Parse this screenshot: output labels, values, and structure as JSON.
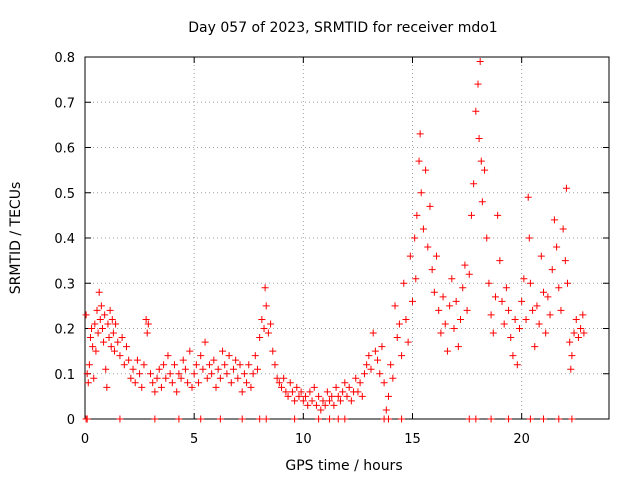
{
  "chart_data": {
    "type": "scatter",
    "title": "Day 057 of 2023, SRMTID for receiver mdo1",
    "xlabel": "GPS time / hours",
    "ylabel": "SRMTID / TECUs",
    "xlim": [
      0,
      24
    ],
    "ylim": [
      0,
      0.8
    ],
    "xticks": [
      0,
      5,
      10,
      15,
      20
    ],
    "yticks": [
      0,
      0.1,
      0.2,
      0.3,
      0.4,
      0.5,
      0.6,
      0.7,
      0.8
    ],
    "xtick_labels": [
      "0",
      "5",
      "10",
      "15",
      "20"
    ],
    "ytick_labels": [
      "0",
      "0.1",
      "0.2",
      "0.3",
      "0.4",
      "0.5",
      "0.6",
      "0.7",
      "0.8"
    ],
    "grid": true,
    "marker": "+",
    "color": "#ff0000",
    "series": [
      {
        "name": "SRMTID",
        "points": [
          [
            0.05,
            0.23
          ],
          [
            0.1,
            0.1
          ],
          [
            0.15,
            0.08
          ],
          [
            0.2,
            0.12
          ],
          [
            0.25,
            0.18
          ],
          [
            0.3,
            0.2
          ],
          [
            0.35,
            0.16
          ],
          [
            0.4,
            0.09
          ],
          [
            0.45,
            0.21
          ],
          [
            0.5,
            0.15
          ],
          [
            0.55,
            0.24
          ],
          [
            0.6,
            0.19
          ],
          [
            0.65,
            0.28
          ],
          [
            0.7,
            0.22
          ],
          [
            0.75,
            0.25
          ],
          [
            0.8,
            0.2
          ],
          [
            0.85,
            0.17
          ],
          [
            0.9,
            0.23
          ],
          [
            0.95,
            0.11
          ],
          [
            1.0,
            0.07
          ],
          [
            1.05,
            0.21
          ],
          [
            1.1,
            0.18
          ],
          [
            1.15,
            0.24
          ],
          [
            1.2,
            0.16
          ],
          [
            1.25,
            0.22
          ],
          [
            1.3,
            0.19
          ],
          [
            1.35,
            0.15
          ],
          [
            1.4,
            0.21
          ],
          [
            1.5,
            0.17
          ],
          [
            1.6,
            0.14
          ],
          [
            1.7,
            0.18
          ],
          [
            1.8,
            0.12
          ],
          [
            1.9,
            0.16
          ],
          [
            2.0,
            0.13
          ],
          [
            2.1,
            0.09
          ],
          [
            2.2,
            0.11
          ],
          [
            2.3,
            0.08
          ],
          [
            2.4,
            0.13
          ],
          [
            2.5,
            0.1
          ],
          [
            2.6,
            0.07
          ],
          [
            2.7,
            0.12
          ],
          [
            2.8,
            0.22
          ],
          [
            2.85,
            0.19
          ],
          [
            2.9,
            0.21
          ],
          [
            3.0,
            0.1
          ],
          [
            3.1,
            0.08
          ],
          [
            3.2,
            0.06
          ],
          [
            3.3,
            0.09
          ],
          [
            3.4,
            0.11
          ],
          [
            3.5,
            0.07
          ],
          [
            3.6,
            0.12
          ],
          [
            3.7,
            0.09
          ],
          [
            3.8,
            0.14
          ],
          [
            3.9,
            0.1
          ],
          [
            4.0,
            0.08
          ],
          [
            4.1,
            0.12
          ],
          [
            4.2,
            0.06
          ],
          [
            4.3,
            0.1
          ],
          [
            4.4,
            0.09
          ],
          [
            4.5,
            0.13
          ],
          [
            4.6,
            0.11
          ],
          [
            4.7,
            0.08
          ],
          [
            4.8,
            0.15
          ],
          [
            4.9,
            0.07
          ],
          [
            5.0,
            0.1
          ],
          [
            5.1,
            0.12
          ],
          [
            5.2,
            0.08
          ],
          [
            5.3,
            0.14
          ],
          [
            5.4,
            0.11
          ],
          [
            5.5,
            0.17
          ],
          [
            5.6,
            0.09
          ],
          [
            5.7,
            0.12
          ],
          [
            5.8,
            0.1
          ],
          [
            5.9,
            0.13
          ],
          [
            6.0,
            0.07
          ],
          [
            6.1,
            0.11
          ],
          [
            6.2,
            0.09
          ],
          [
            6.3,
            0.15
          ],
          [
            6.4,
            0.12
          ],
          [
            6.5,
            0.1
          ],
          [
            6.6,
            0.14
          ],
          [
            6.7,
            0.08
          ],
          [
            6.8,
            0.11
          ],
          [
            6.9,
            0.13
          ],
          [
            7.0,
            0.09
          ],
          [
            7.1,
            0.12
          ],
          [
            7.2,
            0.06
          ],
          [
            7.3,
            0.1
          ],
          [
            7.4,
            0.08
          ],
          [
            7.5,
            0.12
          ],
          [
            7.6,
            0.07
          ],
          [
            7.7,
            0.1
          ],
          [
            7.8,
            0.14
          ],
          [
            7.9,
            0.11
          ],
          [
            8.0,
            0.18
          ],
          [
            8.1,
            0.22
          ],
          [
            8.2,
            0.2
          ],
          [
            8.25,
            0.29
          ],
          [
            8.3,
            0.25
          ],
          [
            8.4,
            0.19
          ],
          [
            8.5,
            0.21
          ],
          [
            8.6,
            0.15
          ],
          [
            8.7,
            0.12
          ],
          [
            8.8,
            0.09
          ],
          [
            8.9,
            0.08
          ],
          [
            9.0,
            0.07
          ],
          [
            9.1,
            0.09
          ],
          [
            9.2,
            0.06
          ],
          [
            9.3,
            0.05
          ],
          [
            9.4,
            0.08
          ],
          [
            9.5,
            0.06
          ],
          [
            9.6,
            0.04
          ],
          [
            9.7,
            0.07
          ],
          [
            9.8,
            0.05
          ],
          [
            9.9,
            0.06
          ],
          [
            10.0,
            0.04
          ],
          [
            10.1,
            0.05
          ],
          [
            10.2,
            0.03
          ],
          [
            10.3,
            0.06
          ],
          [
            10.4,
            0.04
          ],
          [
            10.5,
            0.07
          ],
          [
            10.6,
            0.03
          ],
          [
            10.7,
            0.05
          ],
          [
            10.8,
            0.02
          ],
          [
            10.9,
            0.04
          ],
          [
            11.0,
            0.03
          ],
          [
            11.1,
            0.06
          ],
          [
            11.2,
            0.04
          ],
          [
            11.3,
            0.05
          ],
          [
            11.4,
            0.03
          ],
          [
            11.5,
            0.07
          ],
          [
            11.6,
            0.05
          ],
          [
            11.7,
            0.04
          ],
          [
            11.8,
            0.06
          ],
          [
            11.9,
            0.08
          ],
          [
            12.0,
            0.05
          ],
          [
            12.1,
            0.07
          ],
          [
            12.2,
            0.04
          ],
          [
            12.3,
            0.06
          ],
          [
            12.4,
            0.09
          ],
          [
            12.5,
            0.06
          ],
          [
            12.6,
            0.08
          ],
          [
            12.7,
            0.05
          ],
          [
            12.8,
            0.1
          ],
          [
            12.9,
            0.12
          ],
          [
            13.0,
            0.14
          ],
          [
            13.1,
            0.11
          ],
          [
            13.2,
            0.19
          ],
          [
            13.3,
            0.15
          ],
          [
            13.4,
            0.13
          ],
          [
            13.5,
            0.1
          ],
          [
            13.6,
            0.16
          ],
          [
            13.7,
            0.08
          ],
          [
            13.8,
            0.02
          ],
          [
            13.9,
            0.05
          ],
          [
            14.0,
            0.12
          ],
          [
            14.1,
            0.09
          ],
          [
            14.2,
            0.25
          ],
          [
            14.3,
            0.18
          ],
          [
            14.4,
            0.21
          ],
          [
            14.5,
            0.14
          ],
          [
            14.6,
            0.3
          ],
          [
            14.7,
            0.22
          ],
          [
            14.8,
            0.17
          ],
          [
            14.9,
            0.36
          ],
          [
            15.0,
            0.26
          ],
          [
            15.1,
            0.4
          ],
          [
            15.15,
            0.31
          ],
          [
            15.2,
            0.45
          ],
          [
            15.3,
            0.57
          ],
          [
            15.35,
            0.63
          ],
          [
            15.4,
            0.5
          ],
          [
            15.5,
            0.42
          ],
          [
            15.6,
            0.55
          ],
          [
            15.7,
            0.38
          ],
          [
            15.8,
            0.47
          ],
          [
            15.9,
            0.33
          ],
          [
            16.0,
            0.28
          ],
          [
            16.1,
            0.36
          ],
          [
            16.2,
            0.24
          ],
          [
            16.3,
            0.19
          ],
          [
            16.4,
            0.27
          ],
          [
            16.5,
            0.21
          ],
          [
            16.6,
            0.15
          ],
          [
            16.7,
            0.25
          ],
          [
            16.8,
            0.31
          ],
          [
            16.9,
            0.2
          ],
          [
            17.0,
            0.26
          ],
          [
            17.1,
            0.16
          ],
          [
            17.2,
            0.22
          ],
          [
            17.3,
            0.29
          ],
          [
            17.4,
            0.34
          ],
          [
            17.5,
            0.24
          ],
          [
            17.6,
            0.32
          ],
          [
            17.7,
            0.45
          ],
          [
            17.8,
            0.52
          ],
          [
            17.9,
            0.68
          ],
          [
            18.0,
            0.74
          ],
          [
            18.05,
            0.62
          ],
          [
            18.1,
            0.79
          ],
          [
            18.15,
            0.57
          ],
          [
            18.2,
            0.48
          ],
          [
            18.3,
            0.55
          ],
          [
            18.4,
            0.4
          ],
          [
            18.5,
            0.3
          ],
          [
            18.6,
            0.23
          ],
          [
            18.7,
            0.19
          ],
          [
            18.8,
            0.27
          ],
          [
            18.9,
            0.45
          ],
          [
            19.0,
            0.35
          ],
          [
            19.1,
            0.26
          ],
          [
            19.2,
            0.21
          ],
          [
            19.3,
            0.29
          ],
          [
            19.4,
            0.24
          ],
          [
            19.5,
            0.18
          ],
          [
            19.6,
            0.14
          ],
          [
            19.7,
            0.22
          ],
          [
            19.8,
            0.12
          ],
          [
            19.9,
            0.2
          ],
          [
            20.0,
            0.26
          ],
          [
            20.1,
            0.31
          ],
          [
            20.2,
            0.22
          ],
          [
            20.3,
            0.49
          ],
          [
            20.35,
            0.4
          ],
          [
            20.4,
            0.3
          ],
          [
            20.5,
            0.24
          ],
          [
            20.6,
            0.16
          ],
          [
            20.7,
            0.25
          ],
          [
            20.8,
            0.21
          ],
          [
            20.9,
            0.36
          ],
          [
            21.0,
            0.28
          ],
          [
            21.1,
            0.19
          ],
          [
            21.2,
            0.27
          ],
          [
            21.3,
            0.23
          ],
          [
            21.4,
            0.33
          ],
          [
            21.5,
            0.44
          ],
          [
            21.6,
            0.38
          ],
          [
            21.7,
            0.29
          ],
          [
            21.8,
            0.24
          ],
          [
            21.9,
            0.42
          ],
          [
            22.0,
            0.35
          ],
          [
            22.05,
            0.51
          ],
          [
            22.1,
            0.3
          ],
          [
            22.2,
            0.17
          ],
          [
            22.25,
            0.11
          ],
          [
            22.3,
            0.14
          ],
          [
            22.4,
            0.19
          ],
          [
            22.5,
            0.22
          ],
          [
            22.6,
            0.18
          ],
          [
            22.7,
            0.2
          ],
          [
            22.8,
            0.23
          ],
          [
            22.85,
            0.19
          ]
        ]
      }
    ],
    "zero_points_x": [
      0.05,
      0.1,
      1.6,
      3.2,
      4.3,
      5.3,
      6.2,
      7.2,
      8.0,
      8.3,
      9.6,
      10.7,
      11.2,
      11.6,
      11.9,
      13.7,
      13.9,
      14.5,
      17.6,
      17.9,
      18.6,
      19.4,
      20.4,
      21.0,
      21.7,
      22.3
    ]
  }
}
